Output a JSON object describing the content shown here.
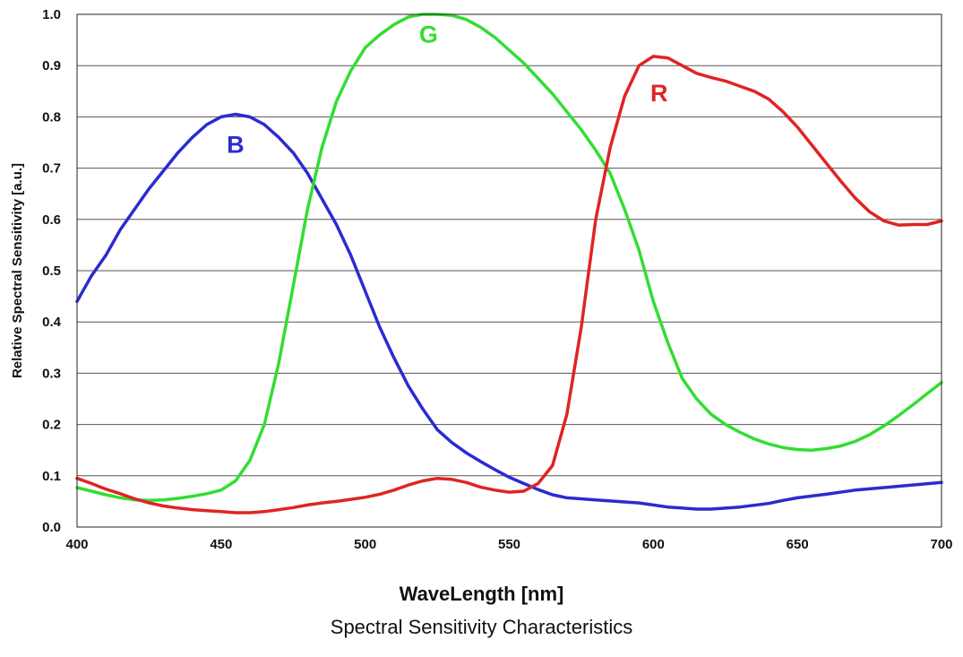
{
  "chart_data": {
    "type": "line",
    "title": "",
    "xlabel": "WaveLength [nm]",
    "ylabel": "Relative Spectral Sensitivity  [a.u.]",
    "caption": "Spectral Sensitivity Characteristics",
    "xlim": [
      400,
      700
    ],
    "ylim": [
      0.0,
      1.0
    ],
    "x_ticks": [
      "400",
      "450",
      "500",
      "550",
      "600",
      "650",
      "700"
    ],
    "y_ticks": [
      "0.0",
      "0.1",
      "0.2",
      "0.3",
      "0.4",
      "0.5",
      "0.6",
      "0.7",
      "0.8",
      "0.9",
      "1.0"
    ],
    "grid": "horizontal",
    "series": [
      {
        "name": "B",
        "color": "#2b2bd1",
        "label_at": [
          455,
          0.73
        ],
        "points": [
          [
            400,
            0.44
          ],
          [
            405,
            0.49
          ],
          [
            410,
            0.53
          ],
          [
            415,
            0.58
          ],
          [
            420,
            0.62
          ],
          [
            425,
            0.66
          ],
          [
            430,
            0.695
          ],
          [
            435,
            0.73
          ],
          [
            440,
            0.76
          ],
          [
            445,
            0.785
          ],
          [
            450,
            0.8
          ],
          [
            455,
            0.805
          ],
          [
            460,
            0.8
          ],
          [
            465,
            0.785
          ],
          [
            470,
            0.76
          ],
          [
            475,
            0.73
          ],
          [
            480,
            0.69
          ],
          [
            485,
            0.64
          ],
          [
            490,
            0.59
          ],
          [
            495,
            0.53
          ],
          [
            500,
            0.46
          ],
          [
            505,
            0.39
          ],
          [
            510,
            0.33
          ],
          [
            515,
            0.275
          ],
          [
            520,
            0.23
          ],
          [
            525,
            0.19
          ],
          [
            530,
            0.165
          ],
          [
            535,
            0.145
          ],
          [
            540,
            0.128
          ],
          [
            545,
            0.112
          ],
          [
            550,
            0.097
          ],
          [
            555,
            0.085
          ],
          [
            560,
            0.073
          ],
          [
            565,
            0.063
          ],
          [
            570,
            0.057
          ],
          [
            580,
            0.053
          ],
          [
            590,
            0.049
          ],
          [
            595,
            0.047
          ],
          [
            600,
            0.043
          ],
          [
            605,
            0.039
          ],
          [
            610,
            0.037
          ],
          [
            615,
            0.035
          ],
          [
            620,
            0.035
          ],
          [
            630,
            0.039
          ],
          [
            640,
            0.046
          ],
          [
            645,
            0.052
          ],
          [
            650,
            0.057
          ],
          [
            660,
            0.064
          ],
          [
            670,
            0.072
          ],
          [
            680,
            0.077
          ],
          [
            690,
            0.082
          ],
          [
            700,
            0.087
          ]
        ]
      },
      {
        "name": "G",
        "color": "#33dd33",
        "label_at": [
          522,
          0.945
        ],
        "points": [
          [
            400,
            0.077
          ],
          [
            405,
            0.07
          ],
          [
            410,
            0.063
          ],
          [
            415,
            0.057
          ],
          [
            420,
            0.053
          ],
          [
            425,
            0.052
          ],
          [
            430,
            0.053
          ],
          [
            435,
            0.056
          ],
          [
            440,
            0.06
          ],
          [
            445,
            0.065
          ],
          [
            450,
            0.072
          ],
          [
            455,
            0.09
          ],
          [
            460,
            0.13
          ],
          [
            465,
            0.2
          ],
          [
            470,
            0.32
          ],
          [
            475,
            0.47
          ],
          [
            480,
            0.62
          ],
          [
            485,
            0.74
          ],
          [
            490,
            0.83
          ],
          [
            495,
            0.89
          ],
          [
            500,
            0.935
          ],
          [
            505,
            0.96
          ],
          [
            510,
            0.98
          ],
          [
            515,
            0.995
          ],
          [
            520,
            1.0
          ],
          [
            525,
            1.0
          ],
          [
            530,
            0.998
          ],
          [
            535,
            0.99
          ],
          [
            540,
            0.975
          ],
          [
            545,
            0.955
          ],
          [
            550,
            0.93
          ],
          [
            555,
            0.905
          ],
          [
            560,
            0.875
          ],
          [
            565,
            0.845
          ],
          [
            570,
            0.81
          ],
          [
            575,
            0.775
          ],
          [
            580,
            0.735
          ],
          [
            585,
            0.69
          ],
          [
            590,
            0.62
          ],
          [
            595,
            0.54
          ],
          [
            600,
            0.44
          ],
          [
            605,
            0.36
          ],
          [
            610,
            0.29
          ],
          [
            615,
            0.25
          ],
          [
            620,
            0.22
          ],
          [
            625,
            0.2
          ],
          [
            630,
            0.185
          ],
          [
            635,
            0.172
          ],
          [
            640,
            0.162
          ],
          [
            645,
            0.155
          ],
          [
            650,
            0.151
          ],
          [
            655,
            0.15
          ],
          [
            660,
            0.153
          ],
          [
            665,
            0.158
          ],
          [
            670,
            0.167
          ],
          [
            675,
            0.18
          ],
          [
            680,
            0.197
          ],
          [
            685,
            0.217
          ],
          [
            690,
            0.238
          ],
          [
            695,
            0.26
          ],
          [
            700,
            0.282
          ]
        ]
      },
      {
        "name": "R",
        "color": "#e02424",
        "label_at": [
          602,
          0.83
        ],
        "points": [
          [
            400,
            0.095
          ],
          [
            405,
            0.085
          ],
          [
            410,
            0.074
          ],
          [
            415,
            0.065
          ],
          [
            420,
            0.055
          ],
          [
            425,
            0.047
          ],
          [
            430,
            0.041
          ],
          [
            435,
            0.037
          ],
          [
            440,
            0.034
          ],
          [
            445,
            0.032
          ],
          [
            450,
            0.03
          ],
          [
            455,
            0.028
          ],
          [
            460,
            0.028
          ],
          [
            465,
            0.03
          ],
          [
            470,
            0.034
          ],
          [
            475,
            0.038
          ],
          [
            480,
            0.043
          ],
          [
            485,
            0.047
          ],
          [
            490,
            0.05
          ],
          [
            495,
            0.054
          ],
          [
            500,
            0.058
          ],
          [
            505,
            0.064
          ],
          [
            510,
            0.072
          ],
          [
            515,
            0.082
          ],
          [
            520,
            0.09
          ],
          [
            525,
            0.095
          ],
          [
            530,
            0.093
          ],
          [
            535,
            0.087
          ],
          [
            540,
            0.078
          ],
          [
            545,
            0.072
          ],
          [
            550,
            0.068
          ],
          [
            555,
            0.07
          ],
          [
            560,
            0.085
          ],
          [
            565,
            0.12
          ],
          [
            570,
            0.22
          ],
          [
            575,
            0.39
          ],
          [
            580,
            0.6
          ],
          [
            585,
            0.74
          ],
          [
            590,
            0.84
          ],
          [
            595,
            0.9
          ],
          [
            600,
            0.918
          ],
          [
            605,
            0.915
          ],
          [
            610,
            0.9
          ],
          [
            615,
            0.885
          ],
          [
            620,
            0.877
          ],
          [
            625,
            0.87
          ],
          [
            630,
            0.86
          ],
          [
            635,
            0.85
          ],
          [
            640,
            0.835
          ],
          [
            645,
            0.81
          ],
          [
            650,
            0.78
          ],
          [
            655,
            0.745
          ],
          [
            660,
            0.71
          ],
          [
            665,
            0.675
          ],
          [
            670,
            0.642
          ],
          [
            675,
            0.615
          ],
          [
            680,
            0.597
          ],
          [
            685,
            0.589
          ],
          [
            690,
            0.59
          ],
          [
            695,
            0.59
          ],
          [
            700,
            0.597
          ]
        ]
      }
    ]
  }
}
